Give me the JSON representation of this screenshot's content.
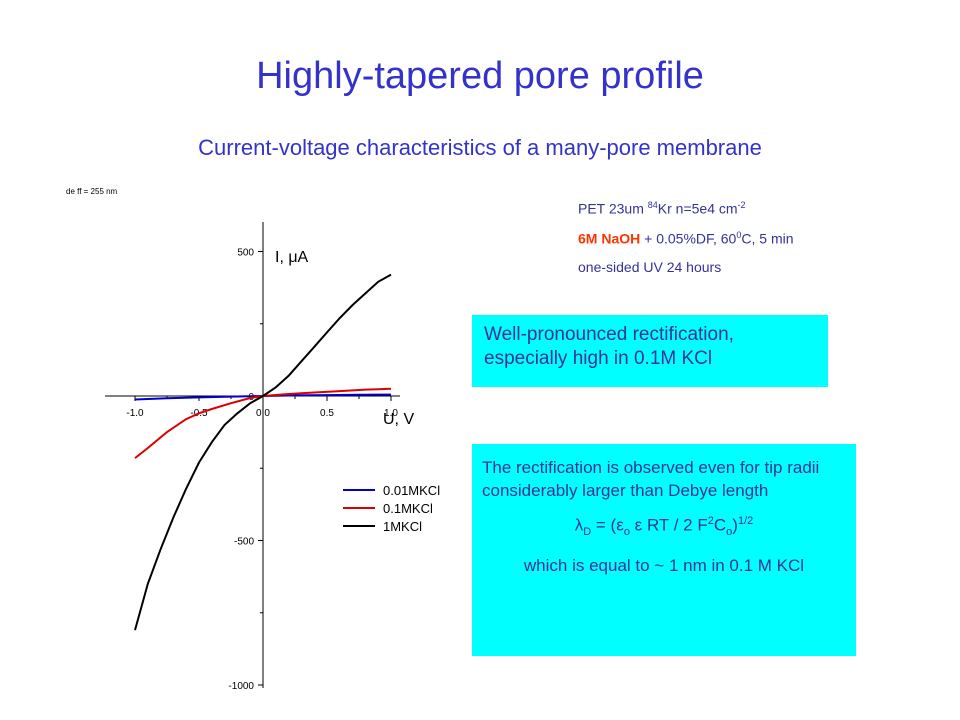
{
  "slide": {
    "title": "Highly-tapered pore profile",
    "subtitle": "Current-voltage characteristics of a many-pore membrane",
    "tiny_label": "de ff = 255 nm",
    "info": {
      "line1_a": "PET 23um  ",
      "line1_sup1": "84",
      "line1_b": "Kr  n=5e4 cm",
      "line1_sup2": "-2",
      "line2_red": "6M NaOH",
      "line2_b": " + 0.05%DF, 60",
      "line2_sup": "0",
      "line2_c": "C, 5 min",
      "line3": "one-sided UV 24 hours"
    },
    "box1": "Well-pronounced rectification, especially high in 0.1M KCl",
    "box2": {
      "para": "The rectification is observed even for tip radii considerably larger than Debye length",
      "formula_a": "λ",
      "formula_sub1": "D",
      "formula_b": " = (ε",
      "formula_sub2": "o",
      "formula_c": " ε RT / 2 F",
      "formula_sup1": "2",
      "formula_d": "C",
      "formula_sub3": "o",
      "formula_e": ")",
      "formula_sup2": "1/2",
      "last": "which is equal to ~ 1 nm in 0.1 M KCl"
    }
  },
  "chart_data": {
    "type": "line",
    "title": "",
    "xlabel": "U, V",
    "ylabel": "I, μA",
    "xlim": [
      -1.0,
      1.0
    ],
    "ylim": [
      -1000,
      600
    ],
    "x_ticks": [
      "-1.0",
      "-0.5",
      "0.0",
      "0.5",
      "1.0"
    ],
    "y_ticks": [
      "500",
      "0",
      "-500",
      "-1000"
    ],
    "legend_position": "lower-right",
    "series": [
      {
        "name": "0.01MKCl",
        "color": "#0000cc",
        "x": [
          -1.0,
          -0.75,
          -0.5,
          -0.25,
          0.0,
          0.25,
          0.5,
          0.75,
          1.0
        ],
        "y": [
          -12,
          -8,
          -5,
          -2,
          0,
          2,
          3,
          4,
          5
        ]
      },
      {
        "name": "0.1MKCl",
        "color": "#dd0000",
        "x": [
          -1.0,
          -0.9,
          -0.75,
          -0.6,
          -0.5,
          -0.4,
          -0.25,
          -0.1,
          0.0,
          0.2,
          0.4,
          0.6,
          0.8,
          1.0
        ],
        "y": [
          -215,
          -180,
          -125,
          -80,
          -60,
          -45,
          -25,
          -7,
          0,
          7,
          12,
          17,
          22,
          25
        ]
      },
      {
        "name": "1MKCl",
        "color": "#000000",
        "x": [
          -1.0,
          -0.9,
          -0.8,
          -0.7,
          -0.6,
          -0.5,
          -0.4,
          -0.3,
          -0.2,
          -0.1,
          0.0,
          0.1,
          0.2,
          0.3,
          0.4,
          0.5,
          0.6,
          0.7,
          0.8,
          0.9,
          1.0
        ],
        "y": [
          -810,
          -650,
          -530,
          -420,
          -320,
          -230,
          -160,
          -100,
          -60,
          -25,
          0,
          30,
          70,
          120,
          170,
          220,
          270,
          315,
          355,
          395,
          420
        ]
      }
    ]
  }
}
